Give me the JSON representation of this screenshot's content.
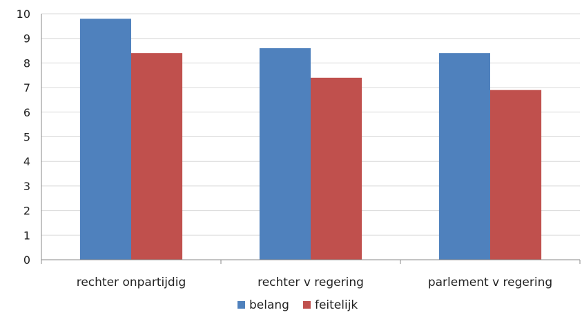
{
  "chart_data": {
    "type": "bar",
    "categories": [
      "rechter onpartijdig",
      "rechter v regering",
      "parlement v regering"
    ],
    "series": [
      {
        "name": "belang",
        "values": [
          9.8,
          8.6,
          8.4
        ],
        "color": "#4F81BD"
      },
      {
        "name": "feitelijk",
        "values": [
          8.4,
          7.4,
          6.9
        ],
        "color": "#C0504D"
      }
    ],
    "ylim": [
      0,
      10
    ],
    "yticks": [
      0,
      1,
      2,
      3,
      4,
      5,
      6,
      7,
      8,
      9,
      10
    ],
    "grid": true,
    "legend_position": "bottom",
    "title": "",
    "xlabel": "",
    "ylabel": ""
  }
}
